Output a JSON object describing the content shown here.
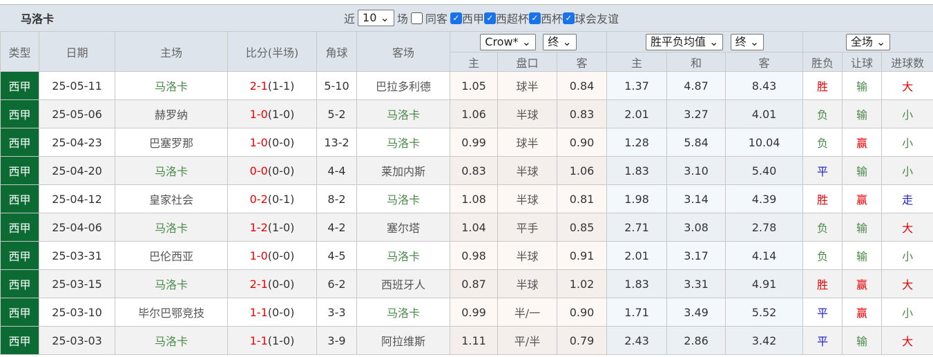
{
  "title": {
    "team": "马洛卡",
    "near": "近",
    "count": "10",
    "chang": "场",
    "same_away": "同客",
    "leagues": [
      {
        "label": "西甲",
        "checked": true
      },
      {
        "label": "西超杯",
        "checked": true
      },
      {
        "label": "西杯",
        "checked": true
      },
      {
        "label": "球会友谊",
        "checked": true
      }
    ]
  },
  "header": {
    "type": "类型",
    "date": "日期",
    "home": "主场",
    "score": "比分(半场)",
    "corner": "角球",
    "away": "客场",
    "company_select": "Crow*",
    "ah_time_select": "终",
    "eu_select": "胜平负均值",
    "eu_time_select": "终",
    "range_select": "全场",
    "sub": [
      "主",
      "盘口",
      "客",
      "主",
      "和",
      "客",
      "胜负",
      "让球",
      "进球数"
    ]
  },
  "colors": {
    "league_bg": "#0b6b33",
    "team_highlight": "#4a8a4a",
    "win": "#e00",
    "draw": "#22c"
  },
  "rows": [
    {
      "type": "西甲",
      "date": "25-05-11",
      "home": "马洛卡",
      "ft": "2-1",
      "ht": "(1-1)",
      "corner": "5-10",
      "away": "巴拉多利德",
      "ah_h": "1.05",
      "ah": "球半",
      "ah_a": "0.84",
      "eu_h": "1.37",
      "eu_d": "4.87",
      "eu_a": "8.43",
      "res": "胜",
      "hc": "输",
      "ou": "大"
    },
    {
      "type": "西甲",
      "date": "25-05-06",
      "home": "赫罗纳",
      "ft": "1-0",
      "ht": "(1-0)",
      "corner": "5-2",
      "away": "马洛卡",
      "ah_h": "1.06",
      "ah": "半球",
      "ah_a": "0.83",
      "eu_h": "2.01",
      "eu_d": "3.27",
      "eu_a": "4.01",
      "res": "负",
      "hc": "输",
      "ou": "小"
    },
    {
      "type": "西甲",
      "date": "25-04-23",
      "home": "巴塞罗那",
      "ft": "1-0",
      "ht": "(0-0)",
      "corner": "13-2",
      "away": "马洛卡",
      "ah_h": "0.99",
      "ah": "球半",
      "ah_a": "0.90",
      "eu_h": "1.28",
      "eu_d": "5.84",
      "eu_a": "10.04",
      "res": "负",
      "hc": "赢",
      "ou": "小"
    },
    {
      "type": "西甲",
      "date": "25-04-20",
      "home": "马洛卡",
      "ft": "0-0",
      "ht": "(0-0)",
      "corner": "4-4",
      "away": "莱加内斯",
      "ah_h": "0.83",
      "ah": "半球",
      "ah_a": "1.06",
      "eu_h": "1.83",
      "eu_d": "3.10",
      "eu_a": "5.40",
      "res": "平",
      "hc": "输",
      "ou": "小"
    },
    {
      "type": "西甲",
      "date": "25-04-12",
      "home": "皇家社会",
      "ft": "0-2",
      "ht": "(0-1)",
      "corner": "8-2",
      "away": "马洛卡",
      "ah_h": "1.08",
      "ah": "半球",
      "ah_a": "0.81",
      "eu_h": "1.98",
      "eu_d": "3.14",
      "eu_a": "4.39",
      "res": "胜",
      "hc": "赢",
      "ou": "走"
    },
    {
      "type": "西甲",
      "date": "25-04-06",
      "home": "马洛卡",
      "ft": "1-2",
      "ht": "(1-0)",
      "corner": "4-2",
      "away": "塞尔塔",
      "ah_h": "1.04",
      "ah": "平手",
      "ah_a": "0.85",
      "eu_h": "2.71",
      "eu_d": "3.08",
      "eu_a": "2.78",
      "res": "负",
      "hc": "输",
      "ou": "大"
    },
    {
      "type": "西甲",
      "date": "25-03-31",
      "home": "巴伦西亚",
      "ft": "1-0",
      "ht": "(0-0)",
      "corner": "4-5",
      "away": "马洛卡",
      "ah_h": "0.98",
      "ah": "半球",
      "ah_a": "0.91",
      "eu_h": "2.01",
      "eu_d": "3.17",
      "eu_a": "4.14",
      "res": "负",
      "hc": "输",
      "ou": "小"
    },
    {
      "type": "西甲",
      "date": "25-03-15",
      "home": "马洛卡",
      "ft": "2-1",
      "ht": "(0-0)",
      "corner": "6-2",
      "away": "西班牙人",
      "ah_h": "0.87",
      "ah": "半球",
      "ah_a": "1.02",
      "eu_h": "1.83",
      "eu_d": "3.31",
      "eu_a": "4.91",
      "res": "胜",
      "hc": "赢",
      "ou": "大"
    },
    {
      "type": "西甲",
      "date": "25-03-10",
      "home": "毕尔巴鄂竞技",
      "ft": "1-1",
      "ht": "(0-0)",
      "corner": "3-3",
      "away": "马洛卡",
      "ah_h": "0.99",
      "ah": "半/一",
      "ah_a": "0.90",
      "eu_h": "1.71",
      "eu_d": "3.49",
      "eu_a": "5.52",
      "res": "平",
      "hc": "赢",
      "ou": "小"
    },
    {
      "type": "西甲",
      "date": "25-03-03",
      "home": "马洛卡",
      "ft": "1-1",
      "ht": "(1-0)",
      "corner": "3-9",
      "away": "阿拉维斯",
      "ah_h": "1.11",
      "ah": "平/半",
      "ah_a": "0.79",
      "eu_h": "2.43",
      "eu_d": "2.86",
      "eu_a": "3.42",
      "res": "平",
      "hc": "输",
      "ou": "大"
    }
  ]
}
